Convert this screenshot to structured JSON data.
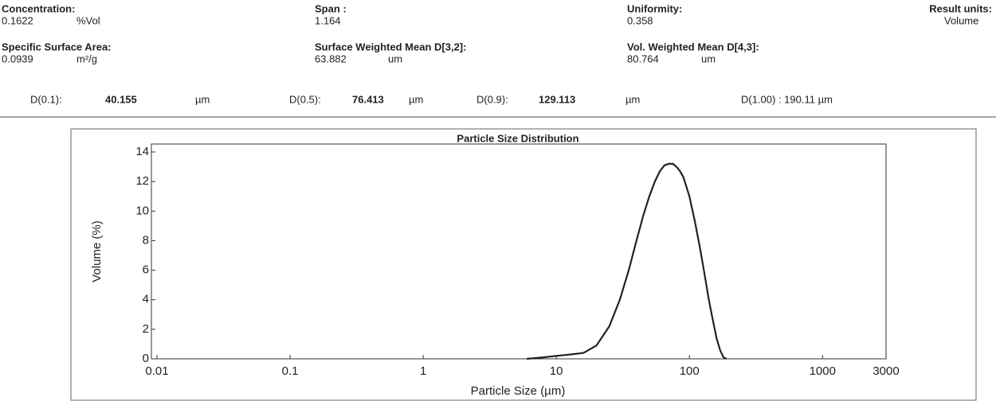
{
  "summary": [
    {
      "label": "Concentration:",
      "value": "0.1622",
      "unit": "%Vol"
    },
    {
      "label": "Span :",
      "value": "1.164"
    },
    {
      "label": "Uniformity:",
      "value": "0.358"
    },
    {
      "label": "Result units:",
      "value": "Volume"
    },
    {
      "label": "Specific Surface Area:",
      "value": "0.0939",
      "unit": "m²/g"
    },
    {
      "label": "Surface Weighted Mean D[3,2]:",
      "value": "63.882",
      "unit": "um"
    },
    {
      "label": "Vol. Weighted Mean D[4,3]:",
      "value": "80.764",
      "unit": "um"
    }
  ],
  "percentiles": [
    {
      "label": "D(0.1):",
      "value": "40.155",
      "unit": "µm"
    },
    {
      "label": "D(0.5):",
      "value": "76.413",
      "unit": "µm"
    },
    {
      "label": "D(0.9):",
      "value": "129.113",
      "unit": "µm"
    },
    {
      "label": "D(1.00) : 190.11 µm"
    }
  ],
  "chart_data": {
    "type": "line",
    "title": "Particle Size Distribution",
    "x_label": "Particle Size (µm)",
    "y_label": "Volume (%)",
    "xscale": "log",
    "x": [
      6,
      8,
      10,
      13,
      16,
      20,
      25,
      30,
      35,
      40,
      45,
      50,
      55,
      60,
      65,
      70,
      75,
      80,
      85,
      90,
      100,
      110,
      120,
      130,
      140,
      150,
      160,
      170,
      180,
      190
    ],
    "values": [
      0,
      0.1,
      0.2,
      0.3,
      0.4,
      0.9,
      2.2,
      4.0,
      6.0,
      8.0,
      9.7,
      11.0,
      12.0,
      12.7,
      13.1,
      13.2,
      13.2,
      13.0,
      12.7,
      12.3,
      11.0,
      9.3,
      7.5,
      5.7,
      4.0,
      2.6,
      1.4,
      0.6,
      0.1,
      0
    ],
    "color": "#222222",
    "xlim": [
      0.01,
      3000
    ],
    "xticks": [
      0.01,
      0.1,
      1,
      10,
      100,
      1000,
      3000
    ],
    "ylim": [
      0,
      14
    ],
    "yticks": [
      0,
      2,
      4,
      6,
      8,
      10,
      12,
      14
    ],
    "grid": false
  }
}
